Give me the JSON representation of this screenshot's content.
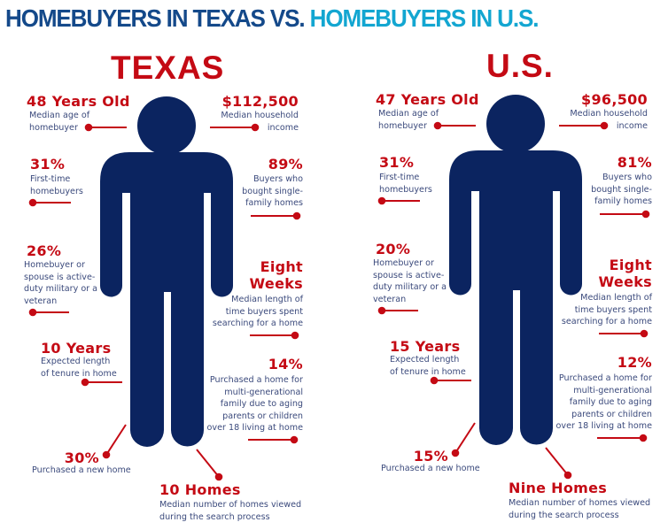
{
  "headline": {
    "part1": "HOMEBUYERS IN TEXAS VS.",
    "part2": "HOMEBUYERS IN U.S."
  },
  "colors": {
    "figure": "#0b2460",
    "accent": "#c40a14",
    "headline_dark": "#14498a",
    "headline_light": "#13a6d1",
    "text": "#3b4a7c"
  },
  "icons": {
    "figure": "person-silhouette-icon"
  },
  "panels": [
    {
      "region": "TEXAS",
      "age": {
        "value": "48 Years Old",
        "label": "Median age of\nhomebuyer"
      },
      "income": {
        "value": "$112,500",
        "label": "Median household\nincome"
      },
      "first_time": {
        "value": "31%",
        "label": "First-time\nhomebuyers"
      },
      "single_family": {
        "value": "89%",
        "label": "Buyers who\nbought single-\nfamily homes"
      },
      "military": {
        "value": "26%",
        "label": "Homebuyer or\nspouse is active-\nduty military or a\nveteran"
      },
      "search_time": {
        "value": "Eight\nWeeks",
        "label": "Median length of\ntime buyers spent\nsearching for a home"
      },
      "tenure": {
        "value": "10 Years",
        "label": "Expected length\nof tenure in home"
      },
      "multigen": {
        "value": "14%",
        "label": "Purchased a home for\nmulti-generational\nfamily due to aging\nparents or children\nover 18 living at home"
      },
      "new_home": {
        "value": "30%",
        "label": "Purchased a new home"
      },
      "homes_viewed": {
        "value": "10 Homes",
        "label": "Median number of homes viewed\nduring the search process"
      }
    },
    {
      "region": "U.S.",
      "age": {
        "value": "47 Years Old",
        "label": "Median age of\nhomebuyer"
      },
      "income": {
        "value": "$96,500",
        "label": "Median household\nincome"
      },
      "first_time": {
        "value": "31%",
        "label": "First-time\nhomebuyers"
      },
      "single_family": {
        "value": "81%",
        "label": "Buyers who\nbought single-\nfamily homes"
      },
      "military": {
        "value": "20%",
        "label": "Homebuyer or\nspouse is active-\nduty military or a\nveteran"
      },
      "search_time": {
        "value": "Eight\nWeeks",
        "label": "Median length of\ntime buyers spent\nsearching for a home"
      },
      "tenure": {
        "value": "15 Years",
        "label": "Expected length\nof tenure in home"
      },
      "multigen": {
        "value": "12%",
        "label": "Purchased a home for\nmulti-generational\nfamily due to aging\nparents or children\nover 18 living at home"
      },
      "new_home": {
        "value": "15%",
        "label": "Purchased a new home"
      },
      "homes_viewed": {
        "value": "Nine Homes",
        "label": "Median number of homes viewed\nduring the search process"
      }
    }
  ]
}
